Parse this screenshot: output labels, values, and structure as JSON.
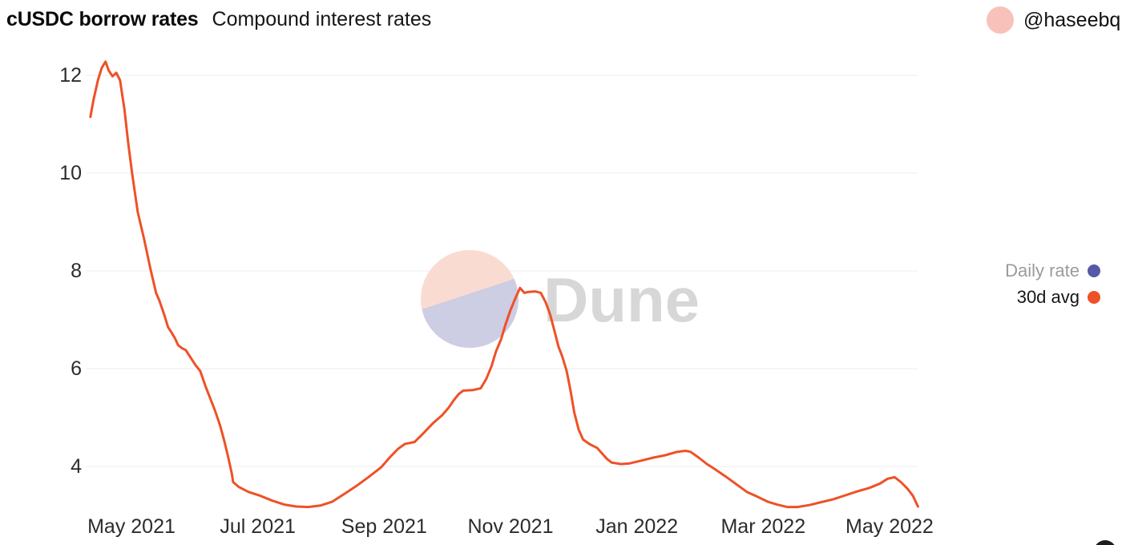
{
  "page": {
    "background": "#ffffff"
  },
  "header": {
    "title": "cUSDC borrow rates",
    "subtitle": "Compound interest rates"
  },
  "profile": {
    "username": "@haseebq",
    "avatar_color": "#f8c2ba"
  },
  "legend": {
    "position": "right",
    "items": [
      {
        "label": "Daily rate",
        "color": "#5659a6",
        "muted": true
      },
      {
        "label": "30d avg",
        "color": "#ee5126",
        "muted": false
      }
    ]
  },
  "watermark": {
    "text": "Dune",
    "text_color": "#d7d7d7",
    "circle_top_color": "#fadbd2",
    "circle_bottom_color": "#cdcde3"
  },
  "corner_logo": {
    "color": "#1d1d1d"
  },
  "chart_data": {
    "type": "line",
    "title": "cUSDC borrow rates",
    "subtitle": "Compound interest rates",
    "grid": "horizontal",
    "grid_color": "#ededed",
    "axis_text_color": "#2c2c2c",
    "legend_position": "right",
    "x_axis": {
      "unit": "month_index (1 = May 2021 tick, +1 per calendar month)",
      "ticks": [
        {
          "label": "May 2021",
          "m": 1
        },
        {
          "label": "Jul 2021",
          "m": 3
        },
        {
          "label": "Sep 2021",
          "m": 5
        },
        {
          "label": "Nov 2021",
          "m": 7
        },
        {
          "label": "Jan 2022",
          "m": 9
        },
        {
          "label": "Mar 2022",
          "m": 11
        },
        {
          "label": "May 2022",
          "m": 13
        }
      ]
    },
    "y_axis": {
      "unit": "percent",
      "ticks": [
        12,
        10,
        8,
        6,
        4
      ],
      "range": [
        3.0,
        12.45
      ]
    },
    "series": [
      {
        "name": "Daily rate",
        "color": "#5659a6",
        "visible": false,
        "points": []
      },
      {
        "name": "30d avg",
        "color": "#ee5126",
        "visible": true,
        "points": [
          [
            0.35,
            11.15
          ],
          [
            0.4,
            11.5
          ],
          [
            0.47,
            11.9
          ],
          [
            0.53,
            12.15
          ],
          [
            0.59,
            12.28
          ],
          [
            0.64,
            12.1
          ],
          [
            0.7,
            11.98
          ],
          [
            0.76,
            12.05
          ],
          [
            0.82,
            11.9
          ],
          [
            0.89,
            11.3
          ],
          [
            0.95,
            10.6
          ],
          [
            1.01,
            10.0
          ],
          [
            1.1,
            9.2
          ],
          [
            1.2,
            8.65
          ],
          [
            1.3,
            8.05
          ],
          [
            1.39,
            7.55
          ],
          [
            1.44,
            7.4
          ],
          [
            1.52,
            7.1
          ],
          [
            1.58,
            6.85
          ],
          [
            1.63,
            6.75
          ],
          [
            1.69,
            6.62
          ],
          [
            1.74,
            6.48
          ],
          [
            1.8,
            6.42
          ],
          [
            1.86,
            6.38
          ],
          [
            1.94,
            6.22
          ],
          [
            2.01,
            6.08
          ],
          [
            2.09,
            5.95
          ],
          [
            2.17,
            5.65
          ],
          [
            2.24,
            5.42
          ],
          [
            2.32,
            5.15
          ],
          [
            2.4,
            4.85
          ],
          [
            2.47,
            4.52
          ],
          [
            2.53,
            4.2
          ],
          [
            2.59,
            3.85
          ],
          [
            2.61,
            3.68
          ],
          [
            2.7,
            3.58
          ],
          [
            2.85,
            3.48
          ],
          [
            3.04,
            3.4
          ],
          [
            3.23,
            3.3
          ],
          [
            3.42,
            3.22
          ],
          [
            3.61,
            3.18
          ],
          [
            3.8,
            3.17
          ],
          [
            3.99,
            3.2
          ],
          [
            4.18,
            3.28
          ],
          [
            4.37,
            3.44
          ],
          [
            4.56,
            3.6
          ],
          [
            4.75,
            3.78
          ],
          [
            4.95,
            3.98
          ],
          [
            5.1,
            4.2
          ],
          [
            5.22,
            4.36
          ],
          [
            5.33,
            4.46
          ],
          [
            5.48,
            4.5
          ],
          [
            5.6,
            4.65
          ],
          [
            5.77,
            4.88
          ],
          [
            5.92,
            5.05
          ],
          [
            6.02,
            5.2
          ],
          [
            6.1,
            5.35
          ],
          [
            6.18,
            5.48
          ],
          [
            6.25,
            5.55
          ],
          [
            6.4,
            5.56
          ],
          [
            6.53,
            5.6
          ],
          [
            6.62,
            5.8
          ],
          [
            6.7,
            6.05
          ],
          [
            6.77,
            6.35
          ],
          [
            6.85,
            6.6
          ],
          [
            6.92,
            6.9
          ],
          [
            7.0,
            7.2
          ],
          [
            7.08,
            7.45
          ],
          [
            7.15,
            7.65
          ],
          [
            7.22,
            7.55
          ],
          [
            7.29,
            7.57
          ],
          [
            7.39,
            7.58
          ],
          [
            7.48,
            7.55
          ],
          [
            7.56,
            7.35
          ],
          [
            7.63,
            7.1
          ],
          [
            7.7,
            6.75
          ],
          [
            7.76,
            6.45
          ],
          [
            7.82,
            6.25
          ],
          [
            7.89,
            5.95
          ],
          [
            7.95,
            5.55
          ],
          [
            8.01,
            5.1
          ],
          [
            8.08,
            4.75
          ],
          [
            8.15,
            4.55
          ],
          [
            8.26,
            4.45
          ],
          [
            8.37,
            4.38
          ],
          [
            8.46,
            4.25
          ],
          [
            8.53,
            4.15
          ],
          [
            8.6,
            4.08
          ],
          [
            8.75,
            4.05
          ],
          [
            8.88,
            4.06
          ],
          [
            9.07,
            4.12
          ],
          [
            9.26,
            4.18
          ],
          [
            9.45,
            4.23
          ],
          [
            9.64,
            4.3
          ],
          [
            9.77,
            4.32
          ],
          [
            9.85,
            4.3
          ],
          [
            9.98,
            4.18
          ],
          [
            10.11,
            4.05
          ],
          [
            10.23,
            3.95
          ],
          [
            10.4,
            3.8
          ],
          [
            10.56,
            3.65
          ],
          [
            10.74,
            3.48
          ],
          [
            10.91,
            3.38
          ],
          [
            11.07,
            3.28
          ],
          [
            11.22,
            3.22
          ],
          [
            11.38,
            3.17
          ],
          [
            11.54,
            3.17
          ],
          [
            11.73,
            3.21
          ],
          [
            11.92,
            3.27
          ],
          [
            12.11,
            3.33
          ],
          [
            12.3,
            3.41
          ],
          [
            12.49,
            3.49
          ],
          [
            12.68,
            3.56
          ],
          [
            12.85,
            3.65
          ],
          [
            12.97,
            3.75
          ],
          [
            13.08,
            3.78
          ],
          [
            13.18,
            3.68
          ],
          [
            13.28,
            3.55
          ],
          [
            13.37,
            3.4
          ],
          [
            13.45,
            3.18
          ]
        ]
      }
    ]
  }
}
